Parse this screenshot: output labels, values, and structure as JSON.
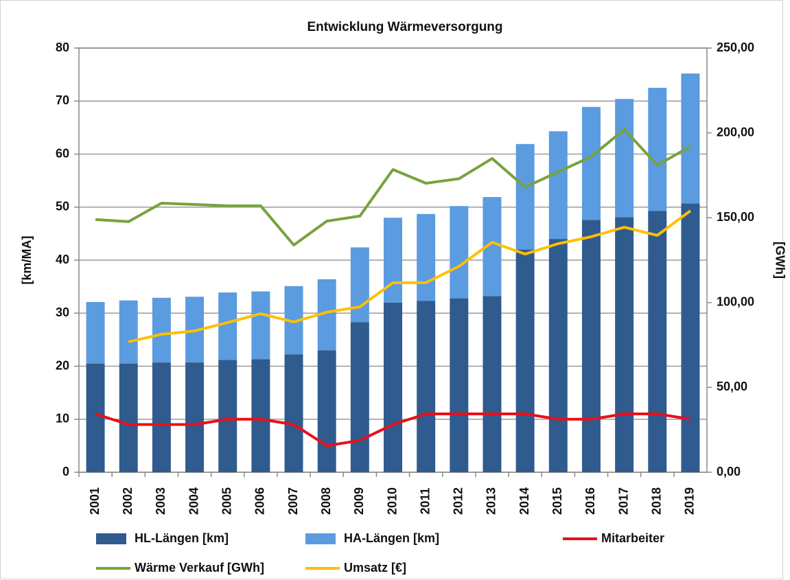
{
  "chart_data": {
    "type": "bar",
    "stacked": true,
    "title": "Entwicklung Wärmeversorgung",
    "ylabel": "[km/MA]",
    "y2label": "[GWh]",
    "categories": [
      "2001",
      "2002",
      "2003",
      "2004",
      "2005",
      "2006",
      "2007",
      "2008",
      "2009",
      "2010",
      "2011",
      "2012",
      "2013",
      "2014",
      "2015",
      "2016",
      "2017",
      "2018",
      "2019"
    ],
    "series": [
      {
        "name": "HL-Längen [km]",
        "type": "bar",
        "color": "#2f5b8f",
        "values": [
          20.5,
          20.5,
          20.7,
          20.7,
          21.2,
          21.3,
          22.2,
          23,
          28.3,
          32,
          32.3,
          32.8,
          33.2,
          42,
          44,
          47.6,
          48.1,
          49.3,
          50.7
        ]
      },
      {
        "name": "HA-Längen [km]",
        "type": "bar",
        "color": "#5b9be0",
        "values": [
          11.6,
          11.9,
          12.2,
          12.4,
          12.7,
          12.8,
          12.9,
          13.4,
          14.1,
          16,
          16.4,
          17.4,
          18.7,
          19.9,
          20.3,
          21.3,
          22.3,
          23.2,
          24.5
        ]
      },
      {
        "name": "Mitarbeiter",
        "type": "line",
        "color": "#e8101a",
        "values": [
          11,
          9,
          9,
          9,
          10,
          10,
          9,
          5,
          6,
          9,
          11,
          11,
          11,
          11,
          10,
          10,
          11,
          11,
          10
        ]
      },
      {
        "name": "Wärme Verkauf [GWh]",
        "type": "line",
        "axis": "y2",
        "color": "#77a33c",
        "values": [
          148.9,
          147.7,
          158.6,
          157.8,
          157,
          157,
          133.9,
          148,
          151,
          178.4,
          170.3,
          173,
          184.9,
          168,
          177,
          186,
          202,
          181,
          192
        ]
      },
      {
        "name": "Umsatz [€]",
        "type": "line",
        "axis": "y2",
        "color": "#ffc000",
        "values": [
          null,
          76.9,
          81.3,
          83.3,
          88.2,
          93.4,
          88.6,
          94.3,
          97.5,
          111.7,
          111.7,
          121.4,
          135.5,
          128.6,
          134.7,
          138.8,
          144.4,
          139.6,
          154.1
        ]
      }
    ],
    "ylim": [
      0,
      80
    ],
    "yticks": [
      0,
      10,
      20,
      30,
      40,
      50,
      60,
      70,
      80
    ],
    "y2lim": [
      0,
      250
    ],
    "y2ticks": [
      {
        "value": 0,
        "label": "0,00"
      },
      {
        "value": 50,
        "label": "50,00"
      },
      {
        "value": 100,
        "label": "100,00"
      },
      {
        "value": 150,
        "label": "150,00"
      },
      {
        "value": 200,
        "label": "200,00"
      },
      {
        "value": 250,
        "label": "250,00"
      }
    ],
    "grid": true
  }
}
